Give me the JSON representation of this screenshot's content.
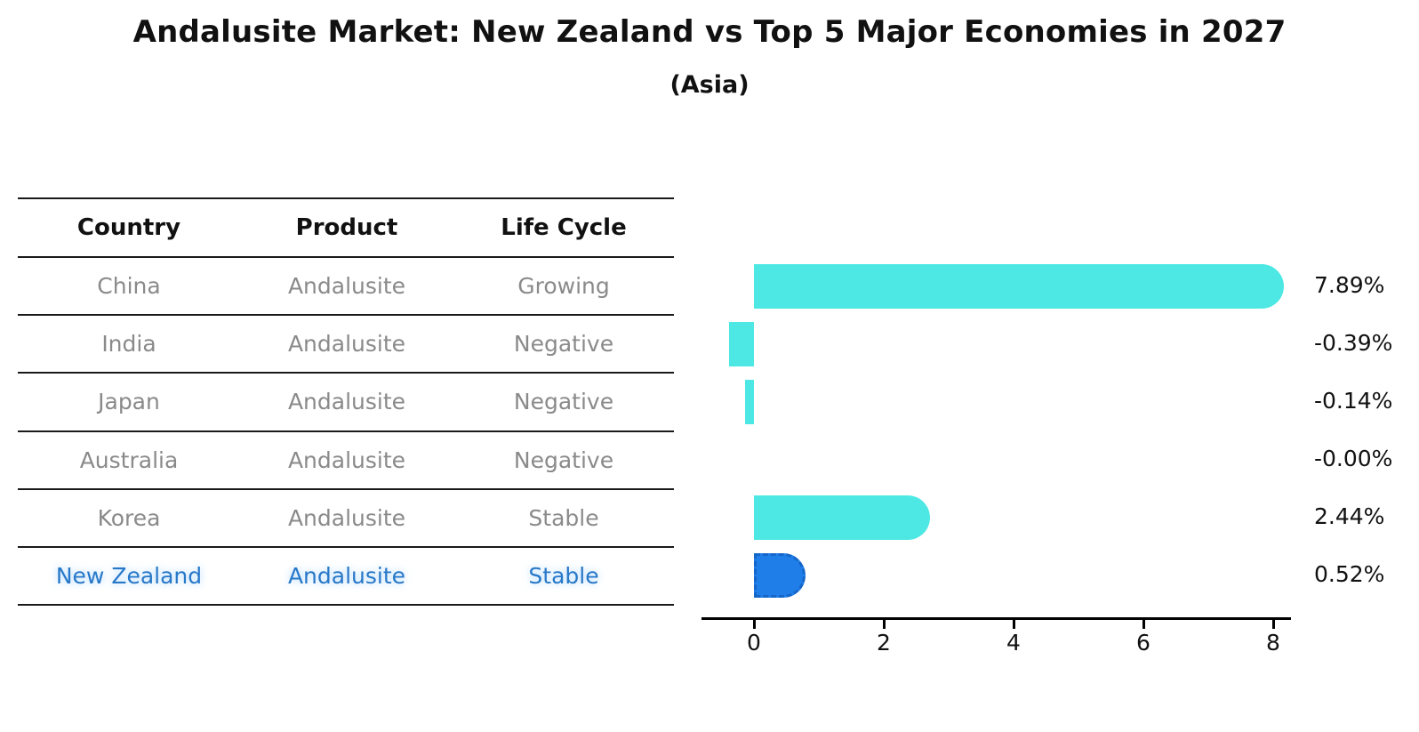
{
  "title": "Andalusite Market: New Zealand vs Top 5 Major Economies in 2027",
  "subtitle": "(Asia)",
  "table": {
    "headers": [
      "Country",
      "Product",
      "Life Cycle"
    ],
    "rows": [
      {
        "country": "China",
        "product": "Andalusite",
        "life_cycle": "Growing",
        "highlight": false
      },
      {
        "country": "India",
        "product": "Andalusite",
        "life_cycle": "Negative",
        "highlight": false
      },
      {
        "country": "Japan",
        "product": "Andalusite",
        "life_cycle": "Negative",
        "highlight": false
      },
      {
        "country": "Australia",
        "product": "Andalusite",
        "life_cycle": "Negative",
        "highlight": false
      },
      {
        "country": "Korea",
        "product": "Andalusite",
        "life_cycle": "Stable",
        "highlight": false
      },
      {
        "country": "New Zealand",
        "product": "Andalusite",
        "life_cycle": "Stable",
        "highlight": true
      }
    ]
  },
  "chart_data": {
    "type": "bar",
    "orientation": "horizontal",
    "title": "Andalusite Market: New Zealand vs Top 5 Major Economies in 2027",
    "subtitle": "(Asia)",
    "categories": [
      "China",
      "India",
      "Japan",
      "Australia",
      "Korea",
      "New Zealand"
    ],
    "values": [
      7.89,
      -0.39,
      -0.14,
      -0.0,
      2.44,
      0.52
    ],
    "value_labels": [
      "7.89%",
      "-0.39%",
      "-0.14%",
      "-0.00%",
      "2.44%",
      "0.52%"
    ],
    "x_ticks": [
      0,
      2,
      4,
      6,
      8
    ],
    "xlim": [
      -0.8,
      8.3
    ],
    "grid": false,
    "legend": "none",
    "bar_color": "#4de8e4",
    "highlight_index": 5,
    "highlight_color": "#1f7ee8",
    "highlight_border_color": "#1566c9",
    "text_color": "#111111",
    "muted_text_color": "#8a8a8a",
    "highlight_text_color": "#2878c8"
  }
}
